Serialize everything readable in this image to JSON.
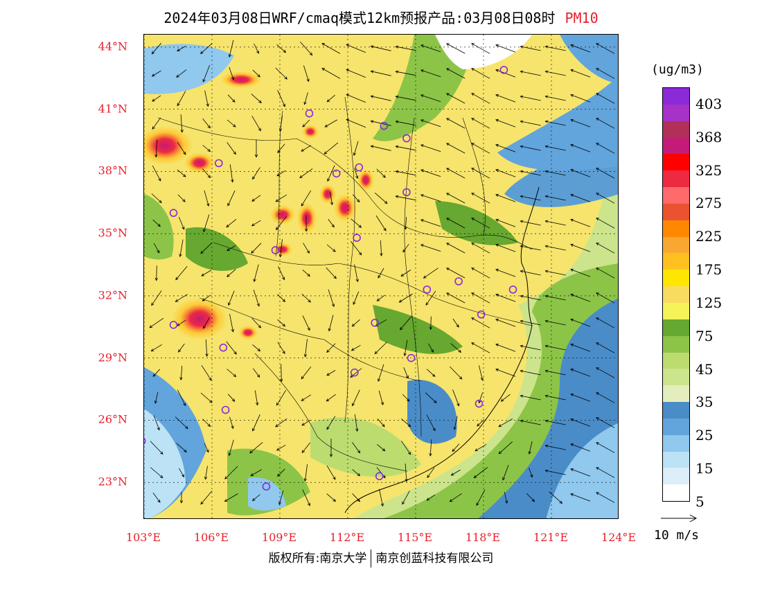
{
  "title": {
    "main": "2024年03月08日WRF/cmaq模式12km预报产品:03月08日08时",
    "pollutant": "PM10"
  },
  "map": {
    "lat_labels": [
      "44°N",
      "41°N",
      "38°N",
      "35°N",
      "32°N",
      "29°N",
      "26°N",
      "23°N"
    ],
    "lon_labels": [
      "103°E",
      "106°E",
      "109°E",
      "112°E",
      "115°E",
      "118°E",
      "121°E",
      "124°E"
    ],
    "lat_values": [
      44,
      41,
      38,
      35,
      32,
      29,
      26,
      23
    ],
    "lon_values": [
      103,
      106,
      109,
      112,
      115,
      118,
      121,
      124
    ],
    "extent": {
      "lon_min": 103,
      "lon_max": 124,
      "lat_min": 21.2,
      "lat_max": 44.6
    },
    "wind": "northerly flow over land, strong northeasterly along coast",
    "cities": [
      {
        "lon": 118.9,
        "lat": 42.9
      },
      {
        "lon": 110.3,
        "lat": 40.8
      },
      {
        "lon": 113.6,
        "lat": 40.2
      },
      {
        "lon": 114.6,
        "lat": 39.6
      },
      {
        "lon": 106.3,
        "lat": 38.4
      },
      {
        "lon": 111.5,
        "lat": 37.9
      },
      {
        "lon": 112.5,
        "lat": 38.2
      },
      {
        "lon": 114.6,
        "lat": 37.0
      },
      {
        "lon": 104.3,
        "lat": 36.0
      },
      {
        "lon": 112.4,
        "lat": 34.8
      },
      {
        "lon": 108.8,
        "lat": 34.2
      },
      {
        "lon": 116.9,
        "lat": 32.7
      },
      {
        "lon": 115.5,
        "lat": 32.3
      },
      {
        "lon": 119.3,
        "lat": 32.3
      },
      {
        "lon": 117.9,
        "lat": 31.1
      },
      {
        "lon": 113.2,
        "lat": 30.7
      },
      {
        "lon": 104.3,
        "lat": 30.6
      },
      {
        "lon": 106.5,
        "lat": 29.5
      },
      {
        "lon": 114.8,
        "lat": 29.0
      },
      {
        "lon": 112.3,
        "lat": 28.3
      },
      {
        "lon": 117.8,
        "lat": 26.8
      },
      {
        "lon": 106.6,
        "lat": 26.5
      },
      {
        "lon": 102.9,
        "lat": 25.0
      },
      {
        "lon": 113.4,
        "lat": 23.3
      },
      {
        "lon": 108.4,
        "lat": 22.8
      }
    ]
  },
  "legend": {
    "unit": "(ug/m3)",
    "labels": [
      "403",
      "368",
      "325",
      "275",
      "225",
      "175",
      "125",
      "75",
      "45",
      "35",
      "25",
      "15",
      "5"
    ],
    "colors": [
      "#8a2ad8",
      "#a632c8",
      "#b0305a",
      "#c41a78",
      "#ff0000",
      "#ee2a40",
      "#ff6a6a",
      "#ea5230",
      "#ff8800",
      "#f8a830",
      "#ffc020",
      "#ffe600",
      "#f8dc60",
      "#f4f45a",
      "#66a830",
      "#8cc448",
      "#bcdc70",
      "#cce48c",
      "#e4eebc",
      "#4a8cc8",
      "#62a4dc",
      "#90c8ee",
      "#bce2f6",
      "#dceef8",
      "#ffffff"
    ]
  },
  "wind_reference": {
    "label": "10 m/s"
  },
  "footer": {
    "left": "版权所有:南京大学",
    "right": "南京创蓝科技有限公司"
  }
}
